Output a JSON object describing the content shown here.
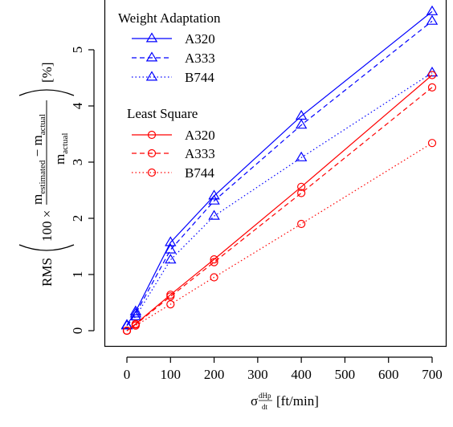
{
  "chart_data": {
    "type": "line",
    "x": [
      0,
      20,
      100,
      200,
      400,
      700
    ],
    "xlim": [
      0,
      700
    ],
    "ylim": [
      0,
      5.6
    ],
    "xticks": [
      "0",
      "100",
      "200",
      "300",
      "400",
      "500",
      "600",
      "700"
    ],
    "yticks": [
      "0",
      "1",
      "2",
      "3",
      "4",
      "5"
    ],
    "xlabel": {
      "sigma": "σ",
      "sup": "dHp",
      "sub": "dt",
      "unit": "[ft/min]"
    },
    "ylabel": {
      "rms": "RMS",
      "factor": "100 ×",
      "numerator_m": "m",
      "numerator_sub1": "estimated",
      "minus": " − m",
      "numerator_sub2": "actual",
      "denominator_m": "m",
      "denominator_sub": "actual",
      "unit": "[%]"
    },
    "legend": {
      "placement": "top-left",
      "groups": [
        {
          "title": "Weight Adaptation",
          "items": [
            "A320",
            "A333",
            "B744"
          ]
        },
        {
          "title": "Least Square",
          "items": [
            "A320",
            "A333",
            "B744"
          ]
        }
      ]
    },
    "colors": {
      "weight_adaptation": "#0000ff",
      "least_square": "#ff0000"
    },
    "series": [
      {
        "name": "A320",
        "group": "Weight Adaptation",
        "marker": "triangle",
        "linestyle": "solid",
        "values": [
          0.1,
          0.34,
          1.57,
          2.4,
          3.82,
          5.68
        ]
      },
      {
        "name": "A333",
        "group": "Weight Adaptation",
        "marker": "triangle",
        "linestyle": "dashed",
        "values": [
          0.09,
          0.3,
          1.44,
          2.31,
          3.66,
          5.51
        ]
      },
      {
        "name": "B744",
        "group": "Weight Adaptation",
        "marker": "triangle",
        "linestyle": "dotted",
        "values": [
          0.09,
          0.25,
          1.26,
          2.04,
          3.08,
          4.59
        ]
      },
      {
        "name": "A320",
        "group": "Least Square",
        "marker": "circle",
        "linestyle": "solid",
        "values": [
          0.0,
          0.12,
          0.64,
          1.27,
          2.56,
          4.55
        ]
      },
      {
        "name": "A333",
        "group": "Least Square",
        "marker": "circle",
        "linestyle": "dashed",
        "values": [
          0.0,
          0.11,
          0.61,
          1.22,
          2.45,
          4.33
        ]
      },
      {
        "name": "B744",
        "group": "Least Square",
        "marker": "circle",
        "linestyle": "dotted",
        "values": [
          0.0,
          0.09,
          0.47,
          0.95,
          1.9,
          3.34
        ]
      }
    ]
  }
}
